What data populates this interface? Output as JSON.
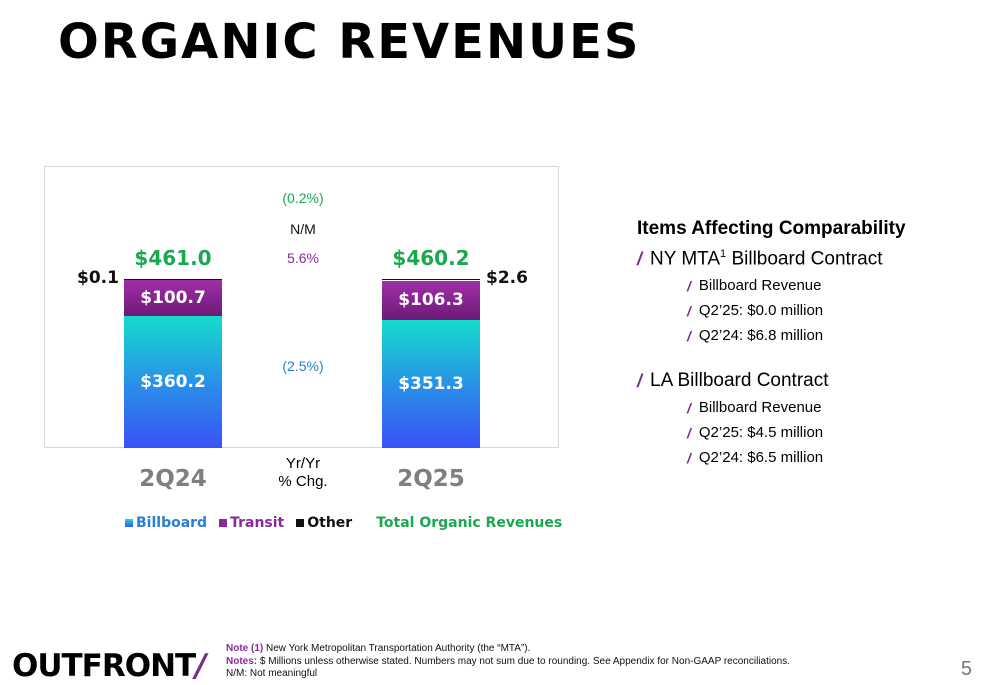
{
  "title": "ORGANIC REVENUES",
  "chart_data": {
    "type": "bar",
    "stacked": true,
    "categories": [
      "2Q24",
      "2Q25"
    ],
    "series": [
      {
        "name": "Billboard",
        "values": [
          360.2,
          351.3
        ],
        "labels": [
          "$360.2",
          "$351.3"
        ],
        "color": "#2a8bea"
      },
      {
        "name": "Transit",
        "values": [
          100.7,
          106.3
        ],
        "labels": [
          "$100.7",
          "$106.3"
        ],
        "color": "#8a2a9a"
      },
      {
        "name": "Other",
        "values": [
          0.1,
          2.6
        ],
        "labels": [
          "$0.1",
          "$2.6"
        ],
        "color": "#111111"
      }
    ],
    "totals": {
      "name": "Total Organic Revenues",
      "values": [
        461.0,
        460.2
      ],
      "labels": [
        "$461.0",
        "$460.2"
      ],
      "color": "#1aa84f"
    },
    "yoy_change": {
      "header": [
        "Yr/Yr",
        "% Chg."
      ],
      "total": "(0.2%)",
      "other": "N/M",
      "transit": "5.6%",
      "billboard": "(2.5%)"
    },
    "yoy_colors": {
      "total": "#1aa84f",
      "other": "#111111",
      "transit": "#8a2a9a",
      "billboard": "#2a7fd4"
    }
  },
  "comparability": {
    "heading": "Items Affecting Comparability",
    "groups": [
      {
        "title": "NY MTA",
        "sup": "1",
        "title_suffix": " Billboard Contract",
        "items": [
          "Billboard Revenue",
          "Q2’25: $0.0 million",
          "Q2’24: $6.8 million"
        ]
      },
      {
        "title": "LA Billboard Contract",
        "sup": "",
        "title_suffix": "",
        "items": [
          "Billboard Revenue",
          "Q2’25: $4.5 million",
          "Q2’24: $6.5 million"
        ]
      }
    ]
  },
  "footer": {
    "logo": "OUTFRONT",
    "note1_key": "Note (1)",
    "note1_text": " New York Metropolitan Transportation Authority (the “MTA”).",
    "notes_key": "Notes:",
    "notes_text": "  $ Millions unless otherwise stated. Numbers may not sum due to rounding. See Appendix for Non-GAAP reconciliations.",
    "nm_text": "N/M: Not meaningful",
    "page": "5"
  }
}
